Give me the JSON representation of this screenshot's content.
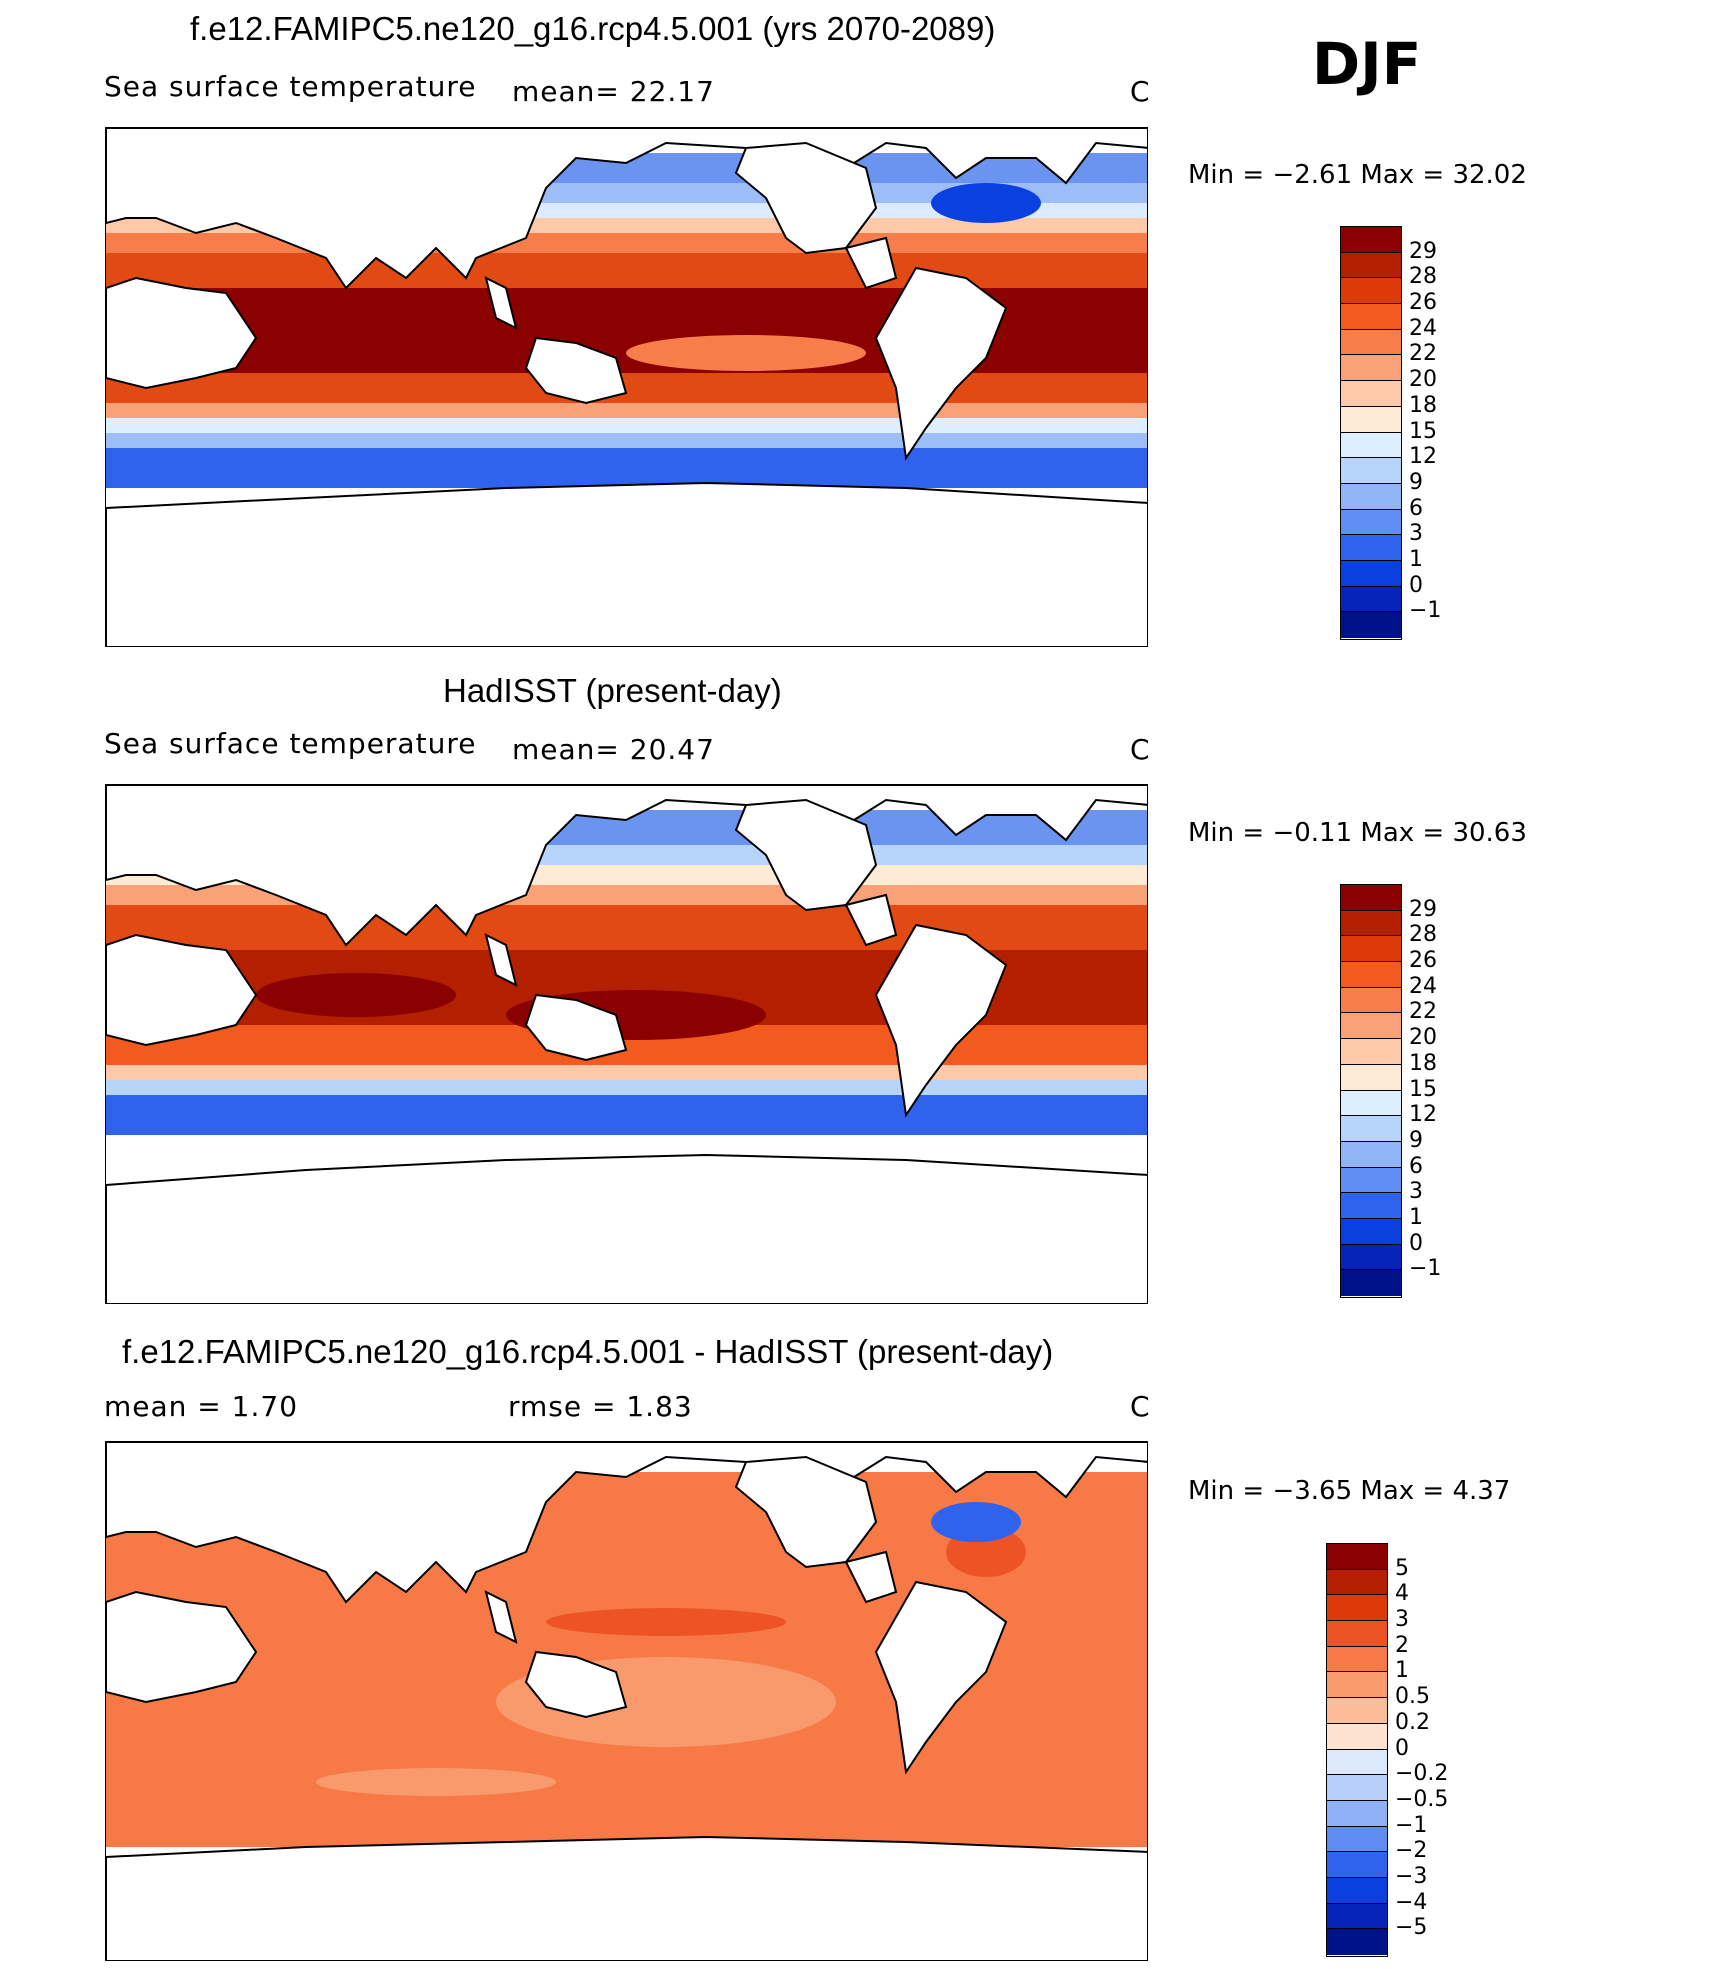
{
  "season": "DJF",
  "panels": [
    {
      "title": "f.e12.FAMIPC5.ne120_g16.rcp4.5.001 (yrs 2070-2089)",
      "left_label": "Sea surface temperature",
      "center_label": "mean=   22.17",
      "unit": "C",
      "minmax": "Min  =   −2.61  Max  =    32.02",
      "colorbar": {
        "colors": [
          "#8b0000",
          "#b22000",
          "#dd3a0a",
          "#f25a1e",
          "#f77e4a",
          "#f9a278",
          "#fdc9a8",
          "#fdebd6",
          "#dceeff",
          "#b7d5fb",
          "#8fb5f7",
          "#5f8ff2",
          "#2f63ee",
          "#0a3fe0",
          "#0624b8",
          "#00128a"
        ],
        "labels": [
          "29",
          "28",
          "26",
          "24",
          "22",
          "20",
          "18",
          "15",
          "12",
          "9",
          "6",
          "3",
          "1",
          "0",
          "−1"
        ]
      }
    },
    {
      "title": "HadISST (present-day)",
      "left_label": "Sea surface temperature",
      "center_label": "mean=   20.47",
      "unit": "C",
      "minmax": "Min  =   −0.11  Max  =    30.63",
      "colorbar": {
        "colors": [
          "#8b0000",
          "#b22000",
          "#dd3a0a",
          "#f25a1e",
          "#f77e4a",
          "#f9a278",
          "#fdc9a8",
          "#fdebd6",
          "#dceeff",
          "#b7d5fb",
          "#8fb5f7",
          "#5f8ff2",
          "#2f63ee",
          "#0a3fe0",
          "#0624b8",
          "#00128a"
        ],
        "labels": [
          "29",
          "28",
          "26",
          "24",
          "22",
          "20",
          "18",
          "15",
          "12",
          "9",
          "6",
          "3",
          "1",
          "0",
          "−1"
        ]
      }
    },
    {
      "title": "f.e12.FAMIPC5.ne120_g16.rcp4.5.001 - HadISST (present-day)",
      "left_label": "mean  =      1.70",
      "center_label": "rmse  =      1.83",
      "unit": "C",
      "minmax": "Min  =   −3.65  Max  =     4.37",
      "colorbar": {
        "colors": [
          "#8b0000",
          "#b22000",
          "#dd3a0a",
          "#ee5326",
          "#f77a46",
          "#f99a6c",
          "#fbbd98",
          "#fde3cf",
          "#dce9fb",
          "#b7cffa",
          "#8fb0f5",
          "#5f8cf0",
          "#2f63ee",
          "#0a3fe0",
          "#0624b8",
          "#00128a"
        ],
        "labels": [
          "5",
          "4",
          "3",
          "2",
          "1",
          "0.5",
          "0.2",
          "0",
          "−0.2",
          "−0.5",
          "−1",
          "−2",
          "−3",
          "−4",
          "−5"
        ]
      }
    }
  ]
}
